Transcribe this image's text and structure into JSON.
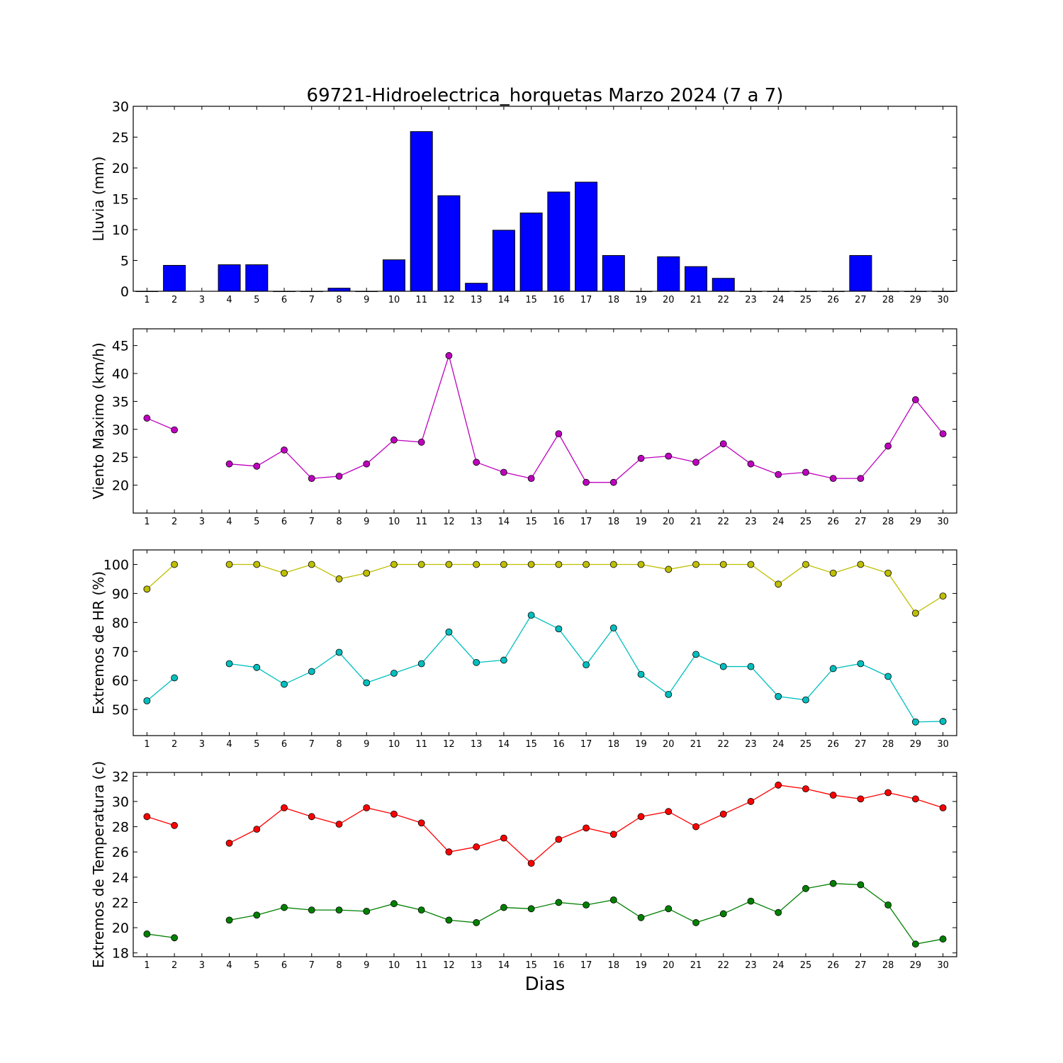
{
  "chart_data": {
    "title": "69721-Hidroelectrica_horquetas Marzo 2024  (7 a 7)",
    "xlabel": "Dias",
    "x": [
      1,
      2,
      3,
      4,
      5,
      6,
      7,
      8,
      9,
      10,
      11,
      12,
      13,
      14,
      15,
      16,
      17,
      18,
      19,
      20,
      21,
      22,
      23,
      24,
      25,
      26,
      27,
      28,
      29,
      30
    ],
    "panels": [
      {
        "type": "bar",
        "ylabel": "Lluvia (mm)",
        "ylim": [
          0,
          30
        ],
        "yticks": [
          0,
          5,
          10,
          15,
          20,
          25,
          30
        ],
        "series": [
          {
            "color": "#0000ff",
            "values": [
              0,
              4.2,
              null,
              4.3,
              4.3,
              0,
              0,
              0.5,
              0,
              5.1,
              25.9,
              15.5,
              1.3,
              9.9,
              12.7,
              16.1,
              17.7,
              5.8,
              0,
              5.6,
              4.0,
              2.1,
              0,
              0,
              0,
              0,
              5.8,
              0,
              0,
              0
            ]
          }
        ]
      },
      {
        "type": "line",
        "ylabel": "Viento Maximo (km/h)",
        "ylim": [
          15,
          48
        ],
        "yticks": [
          20,
          25,
          30,
          35,
          40,
          45
        ],
        "series": [
          {
            "color": "#bf00bf",
            "values": [
              32.0,
              29.9,
              null,
              23.8,
              23.4,
              26.3,
              21.2,
              21.6,
              23.8,
              28.1,
              27.7,
              43.2,
              24.1,
              22.3,
              21.2,
              29.2,
              20.5,
              20.5,
              24.8,
              25.2,
              24.1,
              27.4,
              23.8,
              21.9,
              22.3,
              21.2,
              21.2,
              27.0,
              35.3,
              29.2
            ]
          }
        ]
      },
      {
        "type": "line",
        "ylabel": "Extremos de HR (%)",
        "ylim": [
          41,
          105
        ],
        "yticks": [
          50,
          60,
          70,
          80,
          90,
          100
        ],
        "series": [
          {
            "color": "#bfbf00",
            "values": [
              91.5,
              100,
              null,
              100,
              100,
              97,
              100,
              95,
              97,
              100,
              100,
              100,
              100,
              100,
              100,
              100,
              100,
              100,
              100,
              98.3,
              100,
              100,
              100,
              93.2,
              100,
              97,
              100,
              97,
              83.2,
              89.1
            ]
          },
          {
            "color": "#00bfbf",
            "values": [
              53.0,
              60.9,
              null,
              65.8,
              64.5,
              58.7,
              63.1,
              69.7,
              59.2,
              62.5,
              65.8,
              76.7,
              66.2,
              67.0,
              82.5,
              77.8,
              65.4,
              78.1,
              62.1,
              55.2,
              69.0,
              64.8,
              64.8,
              54.5,
              53.3,
              64.1,
              65.8,
              61.4,
              45.7,
              45.9
            ]
          }
        ]
      },
      {
        "type": "line",
        "ylabel": "Extremos de Temperatura (c)",
        "ylim": [
          17.7,
          32.3
        ],
        "yticks": [
          18,
          20,
          22,
          24,
          26,
          28,
          30,
          32
        ],
        "series": [
          {
            "color": "#ff0000",
            "values": [
              28.8,
              28.1,
              null,
              26.7,
              27.8,
              29.5,
              28.8,
              28.2,
              29.5,
              29.0,
              28.3,
              26.0,
              26.4,
              27.1,
              25.1,
              27.0,
              27.9,
              27.4,
              28.8,
              29.2,
              28.0,
              29.0,
              30.0,
              31.3,
              31.0,
              30.5,
              30.2,
              30.7,
              30.2,
              29.5
            ]
          },
          {
            "color": "#008000",
            "values": [
              19.5,
              19.2,
              null,
              20.6,
              21.0,
              21.6,
              21.4,
              21.4,
              21.3,
              21.9,
              21.4,
              20.6,
              20.4,
              21.6,
              21.5,
              22.0,
              21.8,
              22.2,
              20.8,
              21.5,
              20.4,
              21.1,
              22.1,
              21.2,
              23.1,
              23.5,
              23.4,
              21.8,
              18.7,
              19.1
            ]
          }
        ]
      }
    ]
  }
}
